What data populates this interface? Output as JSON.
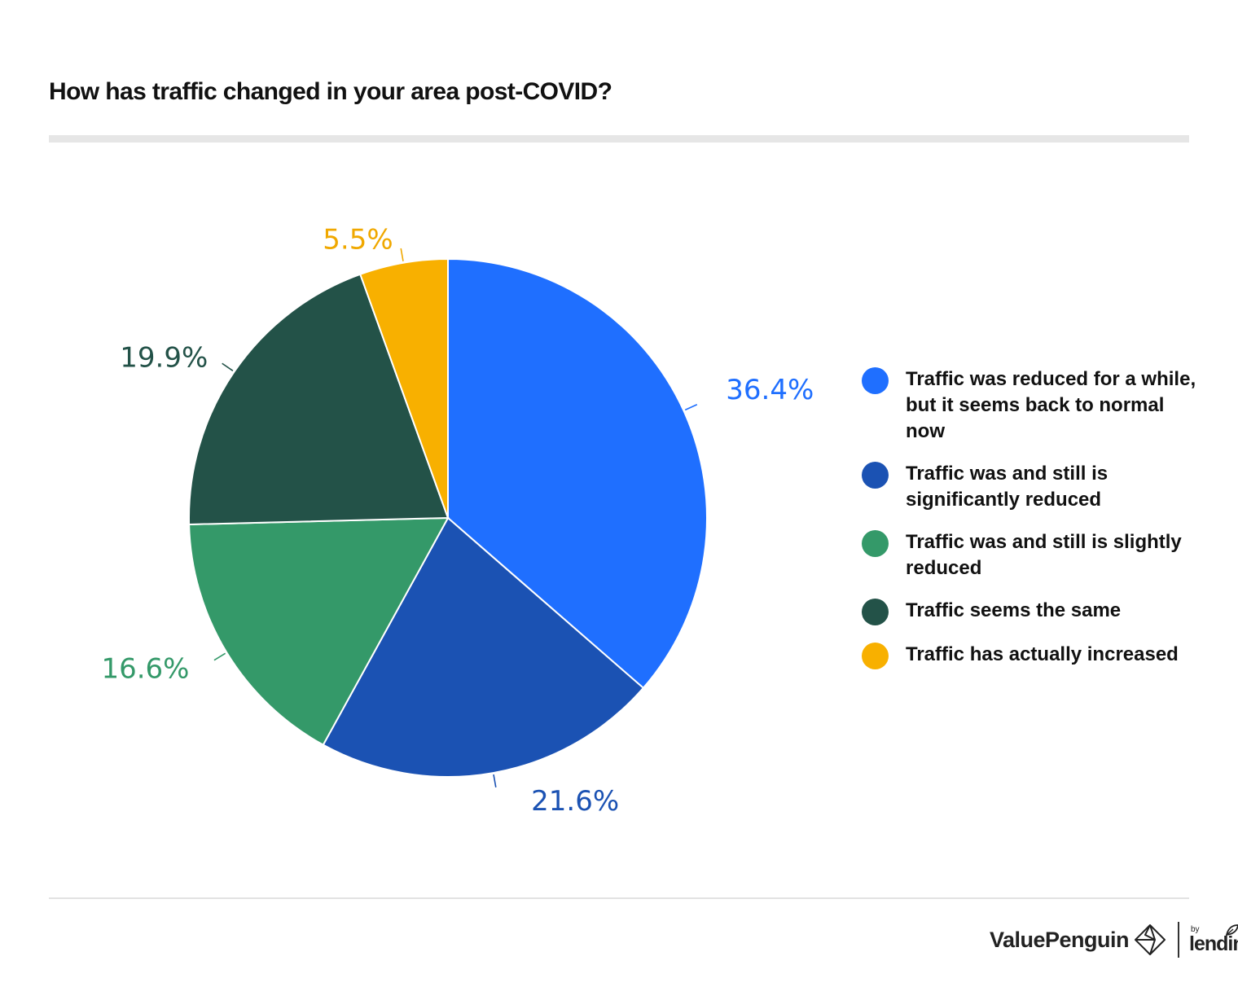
{
  "chart_data": {
    "type": "pie",
    "title": "How has traffic changed in your area post-COVID?",
    "slices": [
      {
        "label": "Traffic was reduced for a while, but it seems back to normal now",
        "value": 36.4,
        "value_label": "36.4%",
        "color": "#1f6fff",
        "label_color": "#1f6fff"
      },
      {
        "label": "Traffic was and still is significantly reduced",
        "value": 21.6,
        "value_label": "21.6%",
        "color": "#1b52b3",
        "label_color": "#1b52b3"
      },
      {
        "label": "Traffic was and still is slightly reduced",
        "value": 16.6,
        "value_label": "16.6%",
        "color": "#349969",
        "label_color": "#349969"
      },
      {
        "label": "Traffic seems the same",
        "value": 19.9,
        "value_label": "19.9%",
        "color": "#235248",
        "label_color": "#235248"
      },
      {
        "label": "Traffic has actually increased",
        "value": 5.5,
        "value_label": "5.5%",
        "color": "#f8b000",
        "label_color": "#f0a800"
      }
    ],
    "start_angle": "12 o'clock",
    "direction": "clockwise",
    "legend_position": "right"
  },
  "branding": {
    "brand_name": "ValuePenguin",
    "partner_prefix": "by",
    "partner_name": "lendingtree"
  }
}
